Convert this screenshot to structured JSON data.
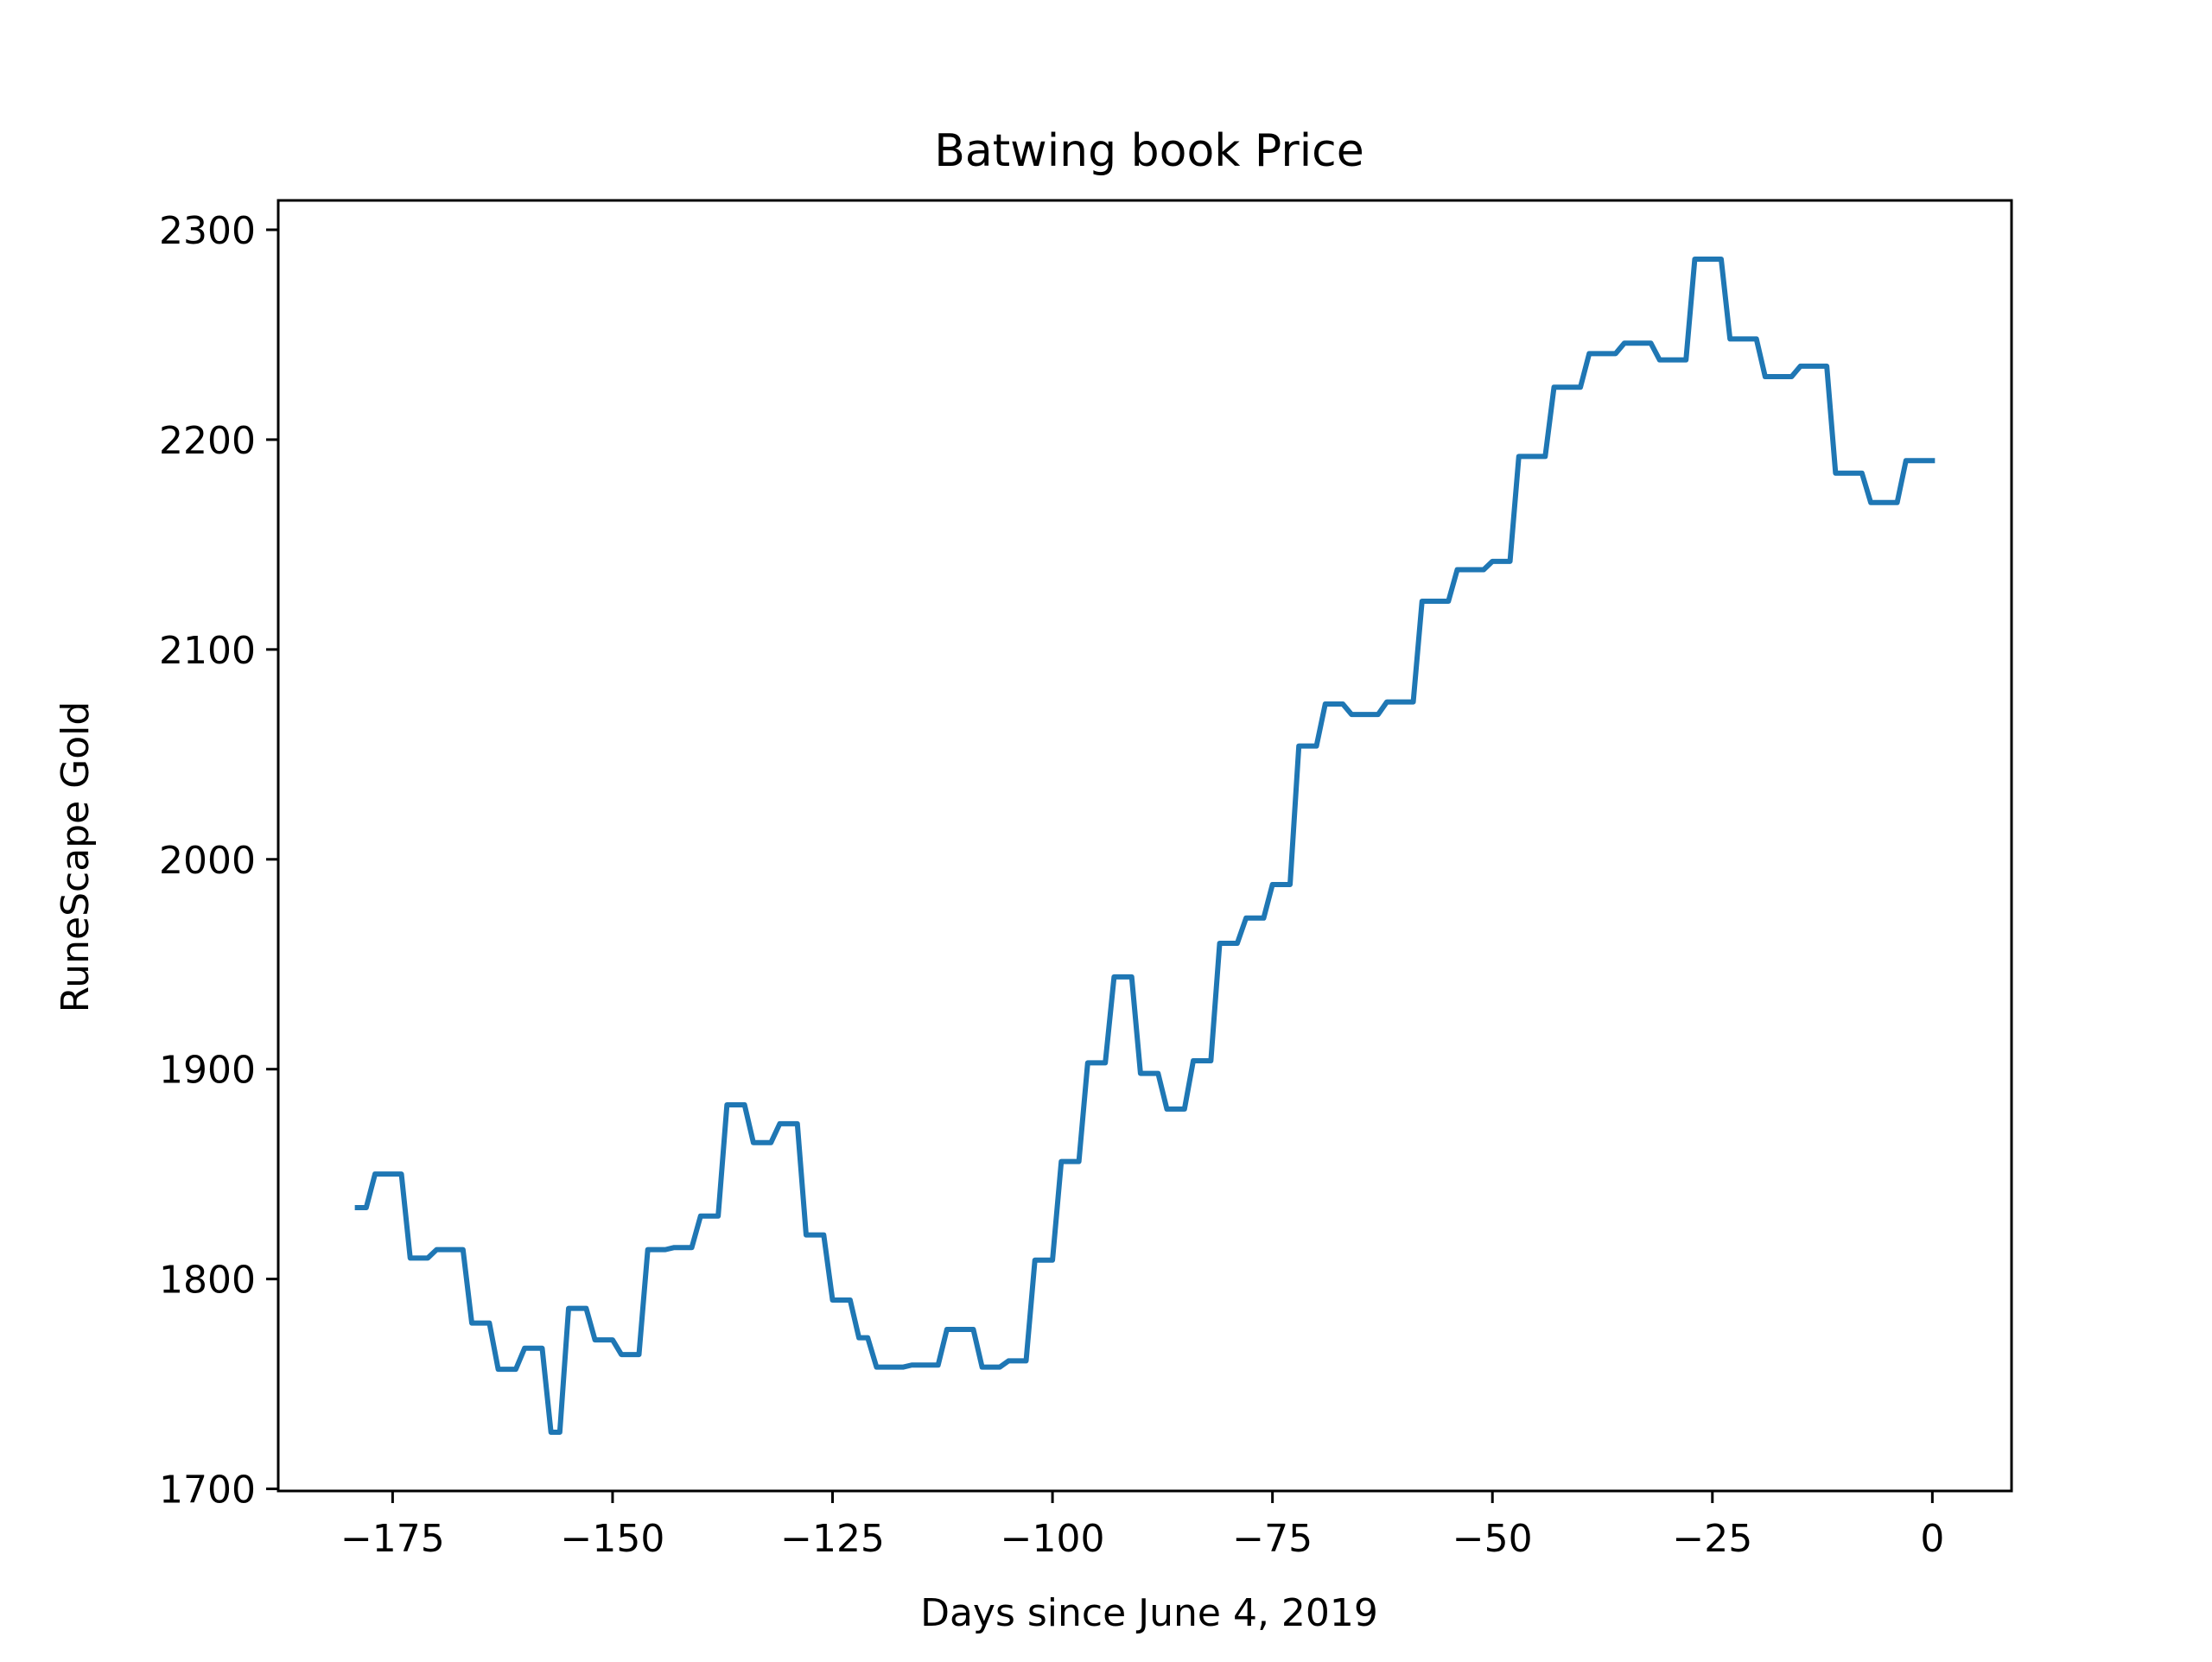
{
  "chart_data": {
    "type": "line",
    "title": "Batwing book Price",
    "xlabel": "Days since June 4, 2019",
    "ylabel": "RuneScape Gold",
    "xlim": [
      -188,
      9
    ],
    "ylim": [
      1699,
      2314
    ],
    "xticks": [
      -175,
      -150,
      -125,
      -100,
      -75,
      -50,
      -25,
      0
    ],
    "yticks": [
      1700,
      1800,
      1900,
      2000,
      2100,
      2200,
      2300
    ],
    "xtick_labels": [
      "−175",
      "−150",
      "−125",
      "−100",
      "−75",
      "−50",
      "−25",
      "0"
    ],
    "ytick_labels": [
      "1700",
      "1800",
      "1900",
      "2000",
      "2100",
      "2200",
      "2300"
    ],
    "grid": false,
    "series": [
      {
        "color": "#1f77b4",
        "x": [
          -179,
          -178,
          -177,
          -176,
          -175,
          -174,
          -173,
          -172,
          -171,
          -170,
          -169,
          -168,
          -167,
          -166,
          -165,
          -164,
          -163,
          -162,
          -161,
          -160,
          -159,
          -158,
          -157,
          -156,
          -155,
          -154,
          -153,
          -152,
          -151,
          -150,
          -149,
          -148,
          -147,
          -146,
          -145,
          -144,
          -143,
          -142,
          -141,
          -140,
          -139,
          -138,
          -137,
          -136,
          -135,
          -134,
          -133,
          -132,
          -131,
          -130,
          -129,
          -128,
          -127,
          -126,
          -125,
          -124,
          -123,
          -122,
          -121,
          -120,
          -119,
          -118,
          -117,
          -116,
          -115,
          -114,
          -113,
          -112,
          -111,
          -110,
          -109,
          -108,
          -107,
          -106,
          -105,
          -104,
          -103,
          -102,
          -101,
          -100,
          -99,
          -98,
          -97,
          -96,
          -95,
          -94,
          -93,
          -92,
          -91,
          -90,
          -89,
          -88,
          -87,
          -86,
          -85,
          -84,
          -83,
          -82,
          -81,
          -80,
          -79,
          -78,
          -77,
          -76,
          -75,
          -74,
          -73,
          -72,
          -71,
          -70,
          -69,
          -68,
          -67,
          -66,
          -65,
          -64,
          -63,
          -62,
          -61,
          -60,
          -59,
          -58,
          -57,
          -56,
          -55,
          -54,
          -53,
          -52,
          -51,
          -50,
          -49,
          -48,
          -47,
          -46,
          -45,
          -44,
          -43,
          -42,
          -41,
          -40,
          -39,
          -38,
          -37,
          -36,
          -35,
          -34,
          -33,
          -32,
          -31,
          -30,
          -29,
          -28,
          -27,
          -26,
          -25,
          -24,
          -23,
          -22,
          -21,
          -20,
          -19,
          -18,
          -17,
          -16,
          -15,
          -14,
          -13,
          -12,
          -11,
          -10,
          -9,
          -8,
          -7,
          -6,
          -5,
          -4,
          -3,
          -2,
          -1,
          0
        ],
        "y": [
          1834,
          1834,
          1850,
          1850,
          1850,
          1850,
          1810,
          1810,
          1810,
          1814,
          1814,
          1814,
          1814,
          1779,
          1779,
          1779,
          1757,
          1757,
          1757,
          1767,
          1767,
          1767,
          1727,
          1727,
          1786,
          1786,
          1786,
          1771,
          1771,
          1771,
          1764,
          1764,
          1764,
          1814,
          1814,
          1814,
          1815,
          1815,
          1815,
          1830,
          1830,
          1830,
          1883,
          1883,
          1883,
          1865,
          1865,
          1865,
          1874,
          1874,
          1874,
          1821,
          1821,
          1821,
          1790,
          1790,
          1790,
          1772,
          1772,
          1758,
          1758,
          1758,
          1758,
          1759,
          1759,
          1759,
          1759,
          1776,
          1776,
          1776,
          1776,
          1758,
          1758,
          1758,
          1761,
          1761,
          1761,
          1809,
          1809,
          1809,
          1856,
          1856,
          1856,
          1903,
          1903,
          1903,
          1944,
          1944,
          1944,
          1898,
          1898,
          1898,
          1881,
          1881,
          1881,
          1904,
          1904,
          1904,
          1960,
          1960,
          1960,
          1972,
          1972,
          1972,
          1988,
          1988,
          1988,
          2054,
          2054,
          2054,
          2074,
          2074,
          2074,
          2069,
          2069,
          2069,
          2069,
          2075,
          2075,
          2075,
          2075,
          2123,
          2123,
          2123,
          2123,
          2138,
          2138,
          2138,
          2138,
          2142,
          2142,
          2142,
          2192,
          2192,
          2192,
          2192,
          2225,
          2225,
          2225,
          2225,
          2241,
          2241,
          2241,
          2241,
          2246,
          2246,
          2246,
          2246,
          2238,
          2238,
          2238,
          2238,
          2286,
          2286,
          2286,
          2286,
          2248,
          2248,
          2248,
          2248,
          2230,
          2230,
          2230,
          2230,
          2235,
          2235,
          2235,
          2235,
          2184,
          2184,
          2184,
          2184,
          2170,
          2170,
          2170,
          2170,
          2190,
          2190,
          2190,
          2190
        ]
      }
    ]
  }
}
